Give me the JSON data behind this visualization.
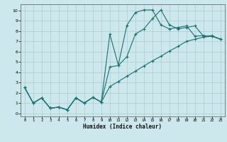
{
  "bg_color": "#cce8ec",
  "grid_color": "#aacccc",
  "line_color": "#1a7070",
  "xlabel": "Humidex (Indice chaleur)",
  "xlim": [
    -0.5,
    23.5
  ],
  "ylim": [
    -0.3,
    10.6
  ],
  "xticks": [
    0,
    1,
    2,
    3,
    4,
    5,
    6,
    7,
    8,
    9,
    10,
    11,
    12,
    13,
    14,
    15,
    16,
    17,
    18,
    19,
    20,
    21,
    22,
    23
  ],
  "yticks": [
    0,
    1,
    2,
    3,
    4,
    5,
    6,
    7,
    8,
    9,
    10
  ],
  "line1_x": [
    0,
    1,
    2,
    3,
    4,
    5,
    6,
    7,
    8,
    9,
    10,
    11,
    12,
    13,
    14,
    15,
    16,
    17,
    18,
    19,
    20,
    21,
    22,
    23
  ],
  "line1_y": [
    2.5,
    1.0,
    1.5,
    0.5,
    0.6,
    0.35,
    1.5,
    1.0,
    1.55,
    1.1,
    7.7,
    4.7,
    8.55,
    9.8,
    10.05,
    10.05,
    8.6,
    8.2,
    8.35,
    8.5,
    7.5,
    7.55,
    7.5,
    7.2
  ],
  "line2_x": [
    0,
    1,
    2,
    3,
    4,
    5,
    6,
    7,
    8,
    9,
    10,
    11,
    12,
    13,
    14,
    15,
    16,
    17,
    18,
    19,
    20,
    21,
    22,
    23
  ],
  "line2_y": [
    2.5,
    1.0,
    1.5,
    0.5,
    0.6,
    0.35,
    1.5,
    1.0,
    1.55,
    1.1,
    4.5,
    4.65,
    5.5,
    7.7,
    8.2,
    9.2,
    10.05,
    8.6,
    8.2,
    8.35,
    8.5,
    7.5,
    7.55,
    7.2
  ],
  "line3_x": [
    0,
    1,
    2,
    3,
    4,
    5,
    6,
    7,
    8,
    9,
    10,
    11,
    12,
    13,
    14,
    15,
    16,
    17,
    18,
    19,
    20,
    21,
    22,
    23
  ],
  "line3_y": [
    2.5,
    1.0,
    1.5,
    0.5,
    0.6,
    0.35,
    1.5,
    1.0,
    1.55,
    1.1,
    2.6,
    3.1,
    3.6,
    4.1,
    4.6,
    5.1,
    5.55,
    6.05,
    6.5,
    7.0,
    7.2,
    7.4,
    7.5,
    7.2
  ]
}
